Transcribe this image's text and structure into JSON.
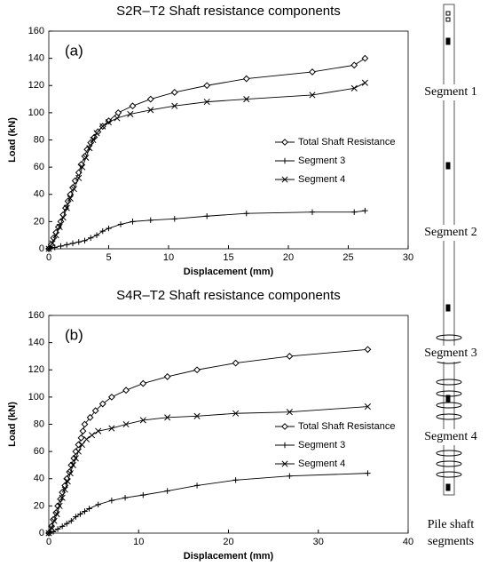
{
  "chart_data": [
    {
      "type": "line",
      "title": "S2R–T2 Shaft resistance components",
      "panel": "(a)",
      "x_label": "Displacement (mm)",
      "y_label": "Load (kN)",
      "xlim": [
        0,
        30
      ],
      "xticks": [
        0,
        5,
        10,
        15,
        20,
        25,
        30
      ],
      "ylim": [
        0,
        160
      ],
      "yticks": [
        0,
        20,
        40,
        60,
        80,
        100,
        120,
        140,
        160
      ],
      "legend": "right",
      "grid": false,
      "series": [
        {
          "name": "Total Shaft Resistance",
          "color": "#000000",
          "marker": "diamond",
          "x": [
            0,
            0.2,
            0.4,
            0.6,
            0.8,
            1.0,
            1.2,
            1.4,
            1.6,
            1.8,
            2.0,
            2.2,
            2.5,
            2.7,
            3.0,
            3.2,
            3.5,
            3.8,
            4.1,
            4.5,
            5.0,
            5.8,
            7.0,
            8.5,
            10.5,
            13.2,
            16.5,
            22.0,
            25.5,
            26.4
          ],
          "values": [
            0,
            3,
            8,
            12,
            16,
            20,
            25,
            30,
            35,
            40,
            45,
            50,
            56,
            62,
            68,
            73,
            78,
            82,
            86,
            90,
            94,
            100,
            105,
            110,
            115,
            120,
            125,
            130,
            135,
            140
          ]
        },
        {
          "name": "Segment  3",
          "color": "#000000",
          "marker": "plus",
          "x": [
            0,
            0.5,
            1,
            1.5,
            2,
            2.5,
            3,
            3.5,
            4,
            4.5,
            5,
            6,
            7,
            8.5,
            10.5,
            13.2,
            16.5,
            22,
            25.5,
            26.4
          ],
          "values": [
            0,
            1,
            2,
            3,
            4,
            5,
            6,
            8,
            10,
            13,
            15,
            18,
            20,
            21,
            22,
            24,
            26,
            27,
            27,
            28
          ]
        },
        {
          "name": "Segment 4",
          "color": "#000000",
          "marker": "cross",
          "x": [
            0,
            0.3,
            0.6,
            0.9,
            1.2,
            1.5,
            1.8,
            2.1,
            2.5,
            2.8,
            3.1,
            3.4,
            3.7,
            4.0,
            4.5,
            5.0,
            5.7,
            6.8,
            8.5,
            10.5,
            13.2,
            16.5,
            22,
            25.5,
            26.4
          ],
          "values": [
            0,
            4,
            10,
            16,
            23,
            30,
            37,
            44,
            52,
            60,
            67,
            74,
            80,
            85,
            90,
            93,
            96,
            99,
            102,
            105,
            108,
            110,
            113,
            118,
            122
          ]
        }
      ]
    },
    {
      "type": "line",
      "title": "S4R–T2 Shaft resistance components",
      "panel": "(b)",
      "x_label": "Displacement (mm)",
      "y_label": "Load (kN)",
      "xlim": [
        0,
        40
      ],
      "xticks": [
        0,
        10,
        20,
        30,
        40
      ],
      "ylim": [
        0,
        160
      ],
      "yticks": [
        0,
        20,
        40,
        60,
        80,
        100,
        120,
        140,
        160
      ],
      "legend": "right",
      "grid": false,
      "series": [
        {
          "name": "Total Shaft Resistance",
          "color": "#000000",
          "marker": "diamond",
          "x": [
            0,
            0.3,
            0.5,
            0.8,
            1.0,
            1.3,
            1.5,
            1.8,
            2.0,
            2.3,
            2.5,
            2.8,
            3.0,
            3.3,
            3.6,
            3.8,
            4.0,
            4.6,
            5.2,
            6.0,
            7.0,
            8.6,
            10.5,
            13.2,
            16.5,
            20.8,
            26.8,
            35.5
          ],
          "values": [
            0,
            5,
            10,
            15,
            20,
            25,
            30,
            35,
            40,
            45,
            50,
            55,
            60,
            65,
            70,
            75,
            80,
            85,
            90,
            95,
            100,
            105,
            110,
            115,
            120,
            125,
            130,
            135
          ]
        },
        {
          "name": "Segment  3",
          "color": "#000000",
          "marker": "plus",
          "x": [
            0,
            0.5,
            1,
            1.5,
            2,
            2.5,
            3,
            3.5,
            4,
            4.5,
            5.5,
            7,
            8.5,
            10.5,
            13.2,
            16.5,
            20.8,
            26.8,
            35.5
          ],
          "values": [
            0,
            1,
            3,
            5,
            7,
            9,
            12,
            14,
            16,
            18,
            21,
            24,
            26,
            28,
            31,
            35,
            39,
            42,
            44
          ]
        },
        {
          "name": "Segment  4",
          "color": "#000000",
          "marker": "cross",
          "x": [
            0,
            0.3,
            0.6,
            0.9,
            1.2,
            1.5,
            1.8,
            2.1,
            2.4,
            2.7,
            3.0,
            3.3,
            3.7,
            4.2,
            4.8,
            5.5,
            7,
            8.6,
            10.5,
            13.2,
            16.5,
            20.8,
            26.8,
            35.5
          ],
          "values": [
            0,
            4,
            9,
            14,
            20,
            26,
            32,
            38,
            44,
            50,
            55,
            60,
            65,
            69,
            72,
            75,
            77,
            80,
            83,
            85,
            86,
            88,
            89,
            93
          ]
        }
      ]
    }
  ],
  "diagram": {
    "labels": [
      "Segment 1",
      "Segment 2",
      "Segment 3",
      "Segment 4"
    ],
    "bottom_label": [
      "Pile shaft",
      "segments"
    ]
  }
}
